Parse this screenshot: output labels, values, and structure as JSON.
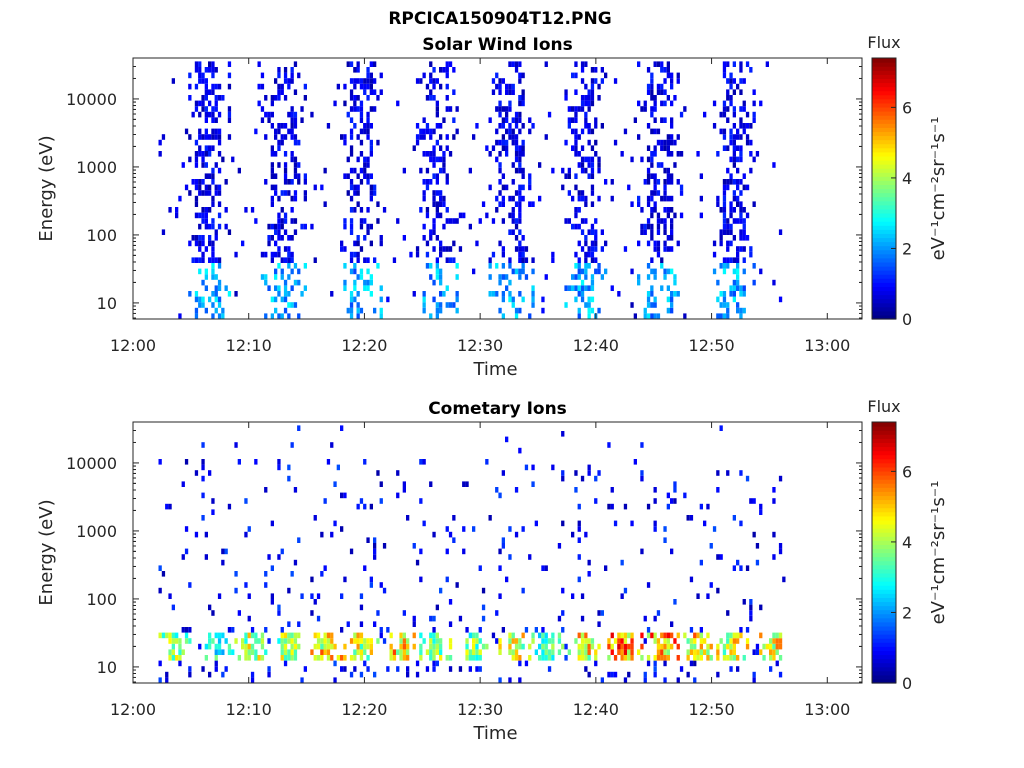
{
  "figure_title": "RPCICA150904T12.PNG",
  "chart_data": [
    {
      "type": "heatmap",
      "title": "Solar Wind Ions",
      "xlabel": "Time",
      "ylabel": "Energy (eV)",
      "x_ticks": [
        "12:00",
        "12:10",
        "12:20",
        "12:30",
        "12:40",
        "12:50",
        "13:00"
      ],
      "x_range_minutes": [
        0,
        63
      ],
      "y_scale": "log",
      "y_ticks": [
        10,
        100,
        1000,
        10000
      ],
      "y_tick_labels": [
        "10",
        "100",
        "1000",
        "10000"
      ],
      "y_range": [
        5.8,
        40000
      ],
      "colorbar": {
        "title": "Flux",
        "label": "eV⁻¹cm⁻²sr⁻¹s⁻¹",
        "range": [
          0,
          7.4
        ],
        "ticks": [
          0,
          2,
          4,
          6
        ],
        "colormap": "jet"
      },
      "data_window_minutes": [
        2.2,
        56.6
      ],
      "bursts": [
        {
          "center_minute": 6.4,
          "width_minutes": 2.2,
          "e_min_eV": 6,
          "e_max_eV": 38000,
          "peak_flux": 2.8
        },
        {
          "center_minute": 12.9,
          "width_minutes": 2.2,
          "e_min_eV": 6,
          "e_max_eV": 38000,
          "peak_flux": 2.8
        },
        {
          "center_minute": 19.6,
          "width_minutes": 2.2,
          "e_min_eV": 6,
          "e_max_eV": 38000,
          "peak_flux": 2.8
        },
        {
          "center_minute": 26.1,
          "width_minutes": 2.2,
          "e_min_eV": 6,
          "e_max_eV": 38000,
          "peak_flux": 2.8
        },
        {
          "center_minute": 32.6,
          "width_minutes": 2.2,
          "e_min_eV": 6,
          "e_max_eV": 38000,
          "peak_flux": 2.8
        },
        {
          "center_minute": 39.0,
          "width_minutes": 2.2,
          "e_min_eV": 6,
          "e_max_eV": 38000,
          "peak_flux": 2.8
        },
        {
          "center_minute": 45.4,
          "width_minutes": 2.2,
          "e_min_eV": 6,
          "e_max_eV": 38000,
          "peak_flux": 2.8
        },
        {
          "center_minute": 51.8,
          "width_minutes": 2.2,
          "e_min_eV": 6,
          "e_max_eV": 38000,
          "peak_flux": 2.8
        }
      ]
    },
    {
      "type": "heatmap",
      "title": "Cometary Ions",
      "xlabel": "Time",
      "ylabel": "Energy (eV)",
      "x_ticks": [
        "12:00",
        "12:10",
        "12:20",
        "12:30",
        "12:40",
        "12:50",
        "13:00"
      ],
      "x_range_minutes": [
        0,
        63
      ],
      "y_scale": "log",
      "y_ticks": [
        10,
        100,
        1000,
        10000
      ],
      "y_tick_labels": [
        "10",
        "100",
        "1000",
        "10000"
      ],
      "y_range": [
        5.8,
        40000
      ],
      "colorbar": {
        "title": "Flux",
        "label": "eV⁻¹cm⁻²sr⁻¹s⁻¹",
        "range": [
          0,
          7.4
        ],
        "ticks": [
          0,
          2,
          4,
          6
        ],
        "colormap": "jet"
      },
      "data_window_minutes": [
        2.2,
        56.6
      ],
      "bursts": [
        {
          "center_minute": 3.5,
          "width_minutes": 1.0,
          "e_min_eV": 12,
          "e_max_eV": 30,
          "peak_flux": 4.8
        },
        {
          "center_minute": 7.4,
          "width_minutes": 1.0,
          "e_min_eV": 12,
          "e_max_eV": 30,
          "peak_flux": 3.8
        },
        {
          "center_minute": 10.0,
          "width_minutes": 1.2,
          "e_min_eV": 12,
          "e_max_eV": 30,
          "peak_flux": 5.2
        },
        {
          "center_minute": 13.3,
          "width_minutes": 1.2,
          "e_min_eV": 12,
          "e_max_eV": 30,
          "peak_flux": 5.0
        },
        {
          "center_minute": 16.5,
          "width_minutes": 1.3,
          "e_min_eV": 12,
          "e_max_eV": 30,
          "peak_flux": 6.0
        },
        {
          "center_minute": 19.6,
          "width_minutes": 1.3,
          "e_min_eV": 12,
          "e_max_eV": 30,
          "peak_flux": 5.5
        },
        {
          "center_minute": 23.3,
          "width_minutes": 1.0,
          "e_min_eV": 12,
          "e_max_eV": 30,
          "peak_flux": 6.2
        },
        {
          "center_minute": 26.1,
          "width_minutes": 1.2,
          "e_min_eV": 12,
          "e_max_eV": 30,
          "peak_flux": 5.0
        },
        {
          "center_minute": 29.2,
          "width_minutes": 1.0,
          "e_min_eV": 12,
          "e_max_eV": 30,
          "peak_flux": 4.6
        },
        {
          "center_minute": 32.8,
          "width_minutes": 1.2,
          "e_min_eV": 12,
          "e_max_eV": 30,
          "peak_flux": 5.6
        },
        {
          "center_minute": 35.7,
          "width_minutes": 1.0,
          "e_min_eV": 12,
          "e_max_eV": 30,
          "peak_flux": 4.2
        },
        {
          "center_minute": 38.9,
          "width_minutes": 1.3,
          "e_min_eV": 12,
          "e_max_eV": 30,
          "peak_flux": 5.8
        },
        {
          "center_minute": 42.4,
          "width_minutes": 1.3,
          "e_min_eV": 12,
          "e_max_eV": 30,
          "peak_flux": 6.8
        },
        {
          "center_minute": 45.6,
          "width_minutes": 1.3,
          "e_min_eV": 12,
          "e_max_eV": 30,
          "peak_flux": 6.6
        },
        {
          "center_minute": 48.6,
          "width_minutes": 1.2,
          "e_min_eV": 12,
          "e_max_eV": 30,
          "peak_flux": 6.0
        },
        {
          "center_minute": 51.7,
          "width_minutes": 1.2,
          "e_min_eV": 12,
          "e_max_eV": 30,
          "peak_flux": 5.6
        },
        {
          "center_minute": 55.4,
          "width_minutes": 1.2,
          "e_min_eV": 12,
          "e_max_eV": 30,
          "peak_flux": 6.0
        }
      ]
    }
  ]
}
